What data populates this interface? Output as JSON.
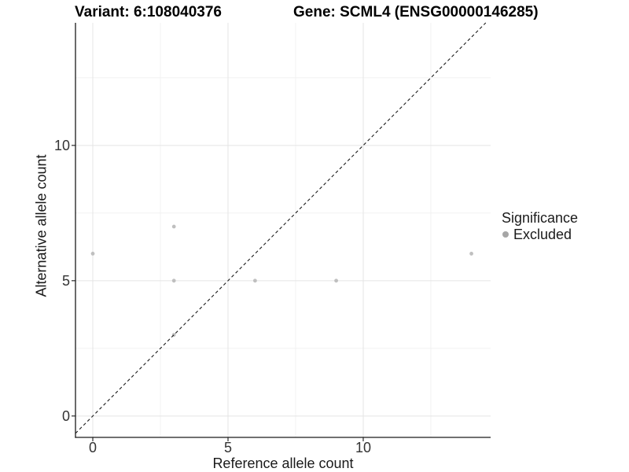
{
  "chart_data": {
    "type": "scatter",
    "titles": {
      "left": "Variant: 6:108040376",
      "right": "Gene: SCML4 (ENSG00000146285)"
    },
    "xlabel": "Reference allele count",
    "ylabel": "Alternative allele count",
    "xlim": [
      -0.64,
      14.71
    ],
    "ylim": [
      -0.79,
      14.53
    ],
    "x_ticks": [
      0,
      5,
      10
    ],
    "y_ticks": [
      0,
      5,
      10
    ],
    "x_minor_gridlines": [
      2.5,
      7.5,
      12.5
    ],
    "y_minor_gridlines": [
      2.5,
      7.5,
      12.5
    ],
    "grid": {
      "on": true,
      "major_color": "#e4e4e4",
      "minor_color": "#f0f0f0"
    },
    "axis_color": "#1a1a1a",
    "identity_line": {
      "type": "y=x",
      "style": "dashed",
      "color": "#1a1a1a",
      "dash": [
        4,
        3.2
      ]
    },
    "series": [
      {
        "name": "Excluded",
        "color": "#bfbfbf",
        "marker": "circle",
        "marker_radius": 2.4,
        "points": [
          [
            0,
            6
          ],
          [
            3,
            7
          ],
          [
            3,
            5
          ],
          [
            3,
            3
          ],
          [
            6,
            5
          ],
          [
            9,
            5
          ],
          [
            14,
            6
          ]
        ]
      }
    ],
    "legend": {
      "title": "Significance",
      "position": "right",
      "entries": [
        {
          "label": "Excluded",
          "color": "#a6a6a6",
          "marker": "circle"
        }
      ]
    }
  }
}
